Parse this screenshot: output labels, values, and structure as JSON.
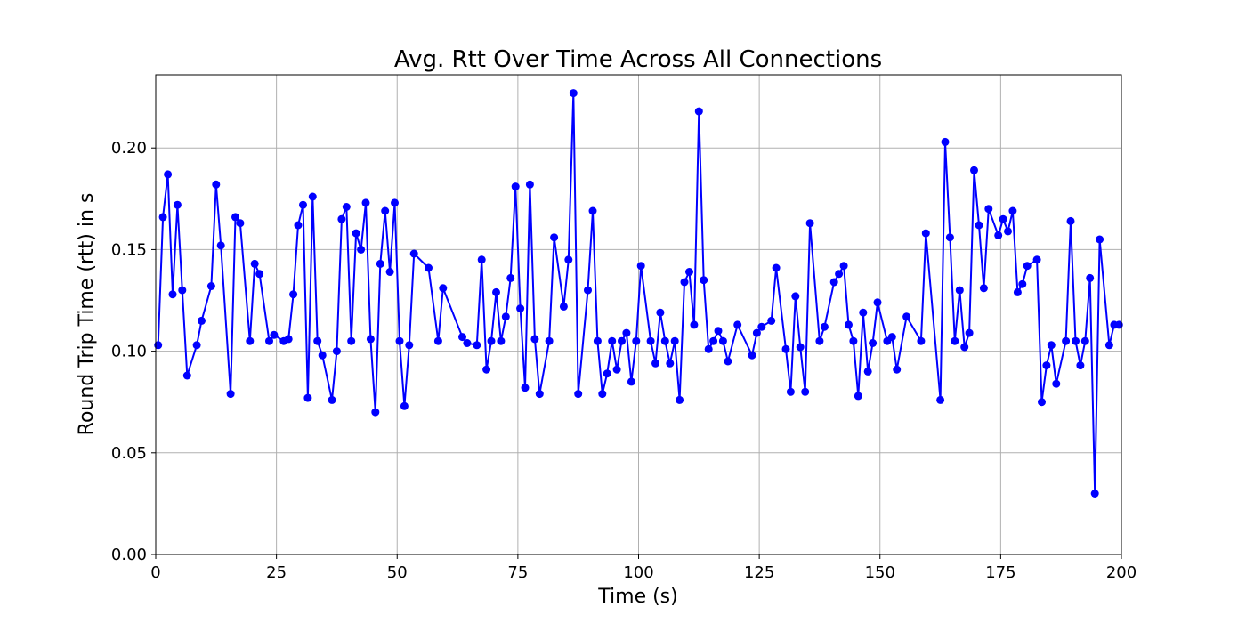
{
  "chart_data": {
    "type": "line",
    "title": "Avg. Rtt Over Time Across All Connections",
    "xlabel": "Time (s)",
    "ylabel": "Round Trip Time (rtt) in s",
    "xlim": [
      0,
      200
    ],
    "ylim": [
      0,
      0.236
    ],
    "xticks": [
      0,
      25,
      50,
      75,
      100,
      125,
      150,
      175,
      200
    ],
    "yticks": [
      0.0,
      0.05,
      0.1,
      0.15,
      0.2
    ],
    "ytick_labels": [
      "0.00",
      "0.05",
      "0.10",
      "0.15",
      "0.20"
    ],
    "grid": true,
    "series": [
      {
        "color": "#0000ff",
        "marker": "circle",
        "x": [
          0.5,
          1.5,
          2.5,
          3.5,
          4.5,
          5.5,
          6.5,
          8.5,
          9.5,
          11.5,
          12.5,
          13.5,
          15.5,
          16.5,
          17.5,
          19.5,
          20.5,
          21.5,
          23.5,
          24.5,
          26.5,
          27.5,
          28.5,
          29.5,
          30.5,
          31.5,
          32.5,
          33.5,
          34.5,
          36.5,
          37.5,
          38.5,
          39.5,
          40.5,
          41.5,
          42.5,
          43.5,
          44.5,
          45.5,
          46.5,
          47.5,
          48.5,
          49.5,
          50.5,
          51.5,
          52.5,
          53.5,
          56.5,
          58.5,
          59.5,
          63.5,
          64.5,
          66.5,
          67.5,
          68.5,
          69.5,
          70.5,
          71.5,
          72.5,
          73.5,
          74.5,
          75.5,
          76.5,
          77.5,
          78.5,
          79.5,
          81.5,
          82.5,
          84.5,
          85.5,
          86.5,
          87.5,
          89.5,
          90.5,
          91.5,
          92.5,
          93.5,
          94.5,
          95.5,
          96.5,
          97.5,
          98.5,
          99.5,
          100.5,
          102.5,
          103.5,
          104.5,
          105.5,
          106.5,
          107.5,
          108.5,
          109.5,
          110.5,
          111.5,
          112.5,
          113.5,
          114.5,
          115.5,
          116.5,
          117.5,
          118.5,
          120.5,
          123.5,
          124.5,
          125.5,
          127.5,
          128.5,
          130.5,
          131.5,
          132.5,
          133.5,
          134.5,
          135.5,
          137.5,
          138.5,
          140.5,
          141.5,
          142.5,
          143.5,
          144.5,
          145.5,
          146.5,
          147.5,
          148.5,
          149.5,
          151.5,
          152.5,
          153.5,
          155.5,
          158.5,
          159.5,
          162.5,
          163.5,
          164.5,
          165.5,
          166.5,
          167.5,
          168.5,
          169.5,
          170.5,
          171.5,
          172.5,
          174.5,
          175.5,
          176.5,
          177.5,
          178.5,
          179.5,
          180.5,
          182.5,
          183.5,
          184.5,
          185.5,
          186.5,
          188.5,
          189.5,
          190.5,
          191.5,
          192.5,
          193.5,
          194.5,
          195.5,
          197.5,
          198.5,
          199.5
        ],
        "y": [
          0.103,
          0.166,
          0.187,
          0.128,
          0.172,
          0.13,
          0.088,
          0.103,
          0.115,
          0.132,
          0.182,
          0.152,
          0.079,
          0.166,
          0.163,
          0.105,
          0.143,
          0.138,
          0.105,
          0.108,
          0.105,
          0.106,
          0.128,
          0.162,
          0.172,
          0.077,
          0.176,
          0.105,
          0.098,
          0.076,
          0.1,
          0.165,
          0.171,
          0.105,
          0.158,
          0.15,
          0.173,
          0.106,
          0.07,
          0.143,
          0.169,
          0.139,
          0.173,
          0.105,
          0.073,
          0.103,
          0.148,
          0.141,
          0.105,
          0.131,
          0.107,
          0.104,
          0.103,
          0.145,
          0.091,
          0.105,
          0.129,
          0.105,
          0.117,
          0.136,
          0.181,
          0.121,
          0.082,
          0.182,
          0.106,
          0.079,
          0.105,
          0.156,
          0.122,
          0.145,
          0.227,
          0.079,
          0.13,
          0.169,
          0.105,
          0.079,
          0.089,
          0.105,
          0.091,
          0.105,
          0.109,
          0.085,
          0.105,
          0.142,
          0.105,
          0.094,
          0.119,
          0.105,
          0.094,
          0.105,
          0.076,
          0.134,
          0.139,
          0.113,
          0.218,
          0.135,
          0.101,
          0.105,
          0.11,
          0.105,
          0.095,
          0.113,
          0.098,
          0.109,
          0.112,
          0.115,
          0.141,
          0.101,
          0.08,
          0.127,
          0.102,
          0.08,
          0.163,
          0.105,
          0.112,
          0.134,
          0.138,
          0.142,
          0.113,
          0.105,
          0.078,
          0.119,
          0.09,
          0.104,
          0.124,
          0.105,
          0.107,
          0.091,
          0.117,
          0.105,
          0.158,
          0.076,
          0.203,
          0.156,
          0.105,
          0.13,
          0.102,
          0.109,
          0.189,
          0.162,
          0.131,
          0.17,
          0.157,
          0.165,
          0.159,
          0.169,
          0.129,
          0.133,
          0.142,
          0.145,
          0.075,
          0.093,
          0.103,
          0.084,
          0.105,
          0.164,
          0.105,
          0.093,
          0.105,
          0.136,
          0.03,
          0.155,
          0.103,
          0.113,
          0.113
        ]
      }
    ]
  }
}
